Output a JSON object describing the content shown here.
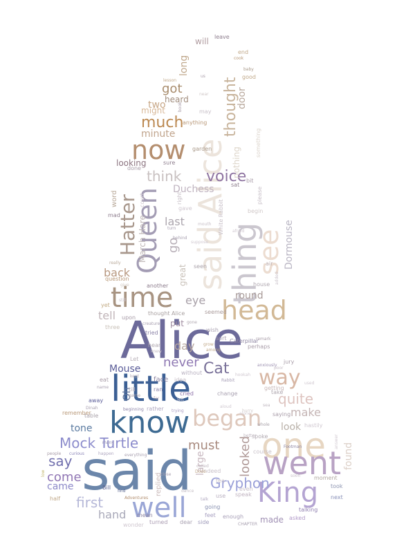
{
  "words": [
    {
      "text": "said",
      "color": "#6b86aa"
    },
    {
      "text": "Alice",
      "color": "#6c6a9a"
    },
    {
      "text": "little",
      "color": "#3b5f94"
    },
    {
      "text": "know",
      "color": "#3d6a92"
    },
    {
      "text": "one",
      "color": "#e7d6c2"
    },
    {
      "text": "went",
      "color": "#b8a2c4"
    },
    {
      "text": "King",
      "color": "#b4a4d2"
    },
    {
      "text": "well",
      "color": "#9aa6d6"
    },
    {
      "text": "head",
      "color": "#d2b996"
    },
    {
      "text": "time",
      "color": "#a89482"
    },
    {
      "text": "said Alice",
      "color": "#ece4dc"
    },
    {
      "text": "thing",
      "color": "#cbc7cf"
    },
    {
      "text": "Queen",
      "color": "#a39cb4"
    },
    {
      "text": "see",
      "color": "#ecdcd0"
    },
    {
      "text": "now",
      "color": "#b48e6e"
    },
    {
      "text": "began",
      "color": "#dec8bc"
    },
    {
      "text": "way",
      "color": "#d8b7a4"
    },
    {
      "text": "Hatter",
      "color": "#a8978c"
    },
    {
      "text": "Mock Turtle",
      "color": "#8c8ccc"
    },
    {
      "text": "voice",
      "color": "#8e73a0"
    },
    {
      "text": "think",
      "color": "#c8c0c0"
    },
    {
      "text": "much",
      "color": "#bb8850"
    },
    {
      "text": "Gryphon",
      "color": "#9aa0d8"
    },
    {
      "text": "quite",
      "color": "#dec4c0"
    },
    {
      "text": "thought",
      "color": "#c8b49c"
    },
    {
      "text": "say",
      "color": "#7270ae"
    },
    {
      "text": "come",
      "color": "#9076b4"
    },
    {
      "text": "first",
      "color": "#b6b8d8"
    },
    {
      "text": "must",
      "color": "#a88a7e"
    },
    {
      "text": "looked",
      "color": "#b09a98"
    },
    {
      "text": "Cat",
      "color": "#787098"
    },
    {
      "text": "never",
      "color": "#8e78b2"
    },
    {
      "text": "got",
      "color": "#a88c6c"
    },
    {
      "text": "Dormouse",
      "color": "#bab6c4"
    },
    {
      "text": "Duchess",
      "color": "#c0b4c0"
    },
    {
      "text": "make",
      "color": "#c4b4b4"
    },
    {
      "text": "go",
      "color": "#b8b0b8"
    },
    {
      "text": "Mouse",
      "color": "#5a5c98"
    },
    {
      "text": "eye",
      "color": "#a8a0a8"
    },
    {
      "text": "last",
      "color": "#aca6ae"
    },
    {
      "text": "round",
      "color": "#a89a98"
    },
    {
      "text": "back",
      "color": "#b89880"
    },
    {
      "text": "tell",
      "color": "#c0b4b8"
    },
    {
      "text": "hand",
      "color": "#a8a8b8"
    },
    {
      "text": "day",
      "color": "#b8a8a0"
    },
    {
      "text": "tone",
      "color": "#5a7aa0"
    },
    {
      "text": "came",
      "color": "#8c88c8"
    },
    {
      "text": "made",
      "color": "#a090b4"
    },
    {
      "text": "minute",
      "color": "#c0a48c"
    },
    {
      "text": "two",
      "color": "#c8a888"
    },
    {
      "text": "look",
      "color": "#b8b0a8"
    },
    {
      "text": "found",
      "color": "#dcd0c8"
    },
    {
      "text": "long",
      "color": "#c0a88c"
    },
    {
      "text": "Oh",
      "color": "#5c7098"
    },
    {
      "text": "large",
      "color": "#c8b8c0"
    },
    {
      "text": "March Hare",
      "color": "#c0b8b8"
    },
    {
      "text": "great",
      "color": "#c8c0b8"
    },
    {
      "text": "door",
      "color": "#b8a89c"
    },
    {
      "text": "heard",
      "color": "#a08c7c"
    },
    {
      "text": "might",
      "color": "#d8b898"
    },
    {
      "text": "nothing",
      "color": "#dcd4c8"
    },
    {
      "text": "looking",
      "color": "#8c7480"
    },
    {
      "text": "will",
      "color": "#b09ca0"
    },
    {
      "text": "word",
      "color": "#b8a898"
    },
    {
      "text": "replied",
      "color": "#c8b8b8"
    },
    {
      "text": "thought Alice",
      "color": "#a8a0a0"
    },
    {
      "text": "put",
      "color": "#a08ca0"
    },
    {
      "text": "Caterpillar",
      "color": "#8c84a0"
    },
    {
      "text": "seemed",
      "color": "#a89898"
    },
    {
      "text": "getting",
      "color": "#c8b8b8"
    },
    {
      "text": "going",
      "color": "#8890b0"
    },
    {
      "text": "enough",
      "color": "#a8a0b8"
    },
    {
      "text": "feet",
      "color": "#a8a0c0"
    },
    {
      "text": "side",
      "color": "#9c98b8"
    },
    {
      "text": "asked",
      "color": "#b098c8"
    },
    {
      "text": "talking",
      "color": "#9080b0"
    },
    {
      "text": "next",
      "color": "#8890b8"
    },
    {
      "text": "took",
      "color": "#8c94b0"
    },
    {
      "text": "moment",
      "color": "#b0a8a0"
    },
    {
      "text": "soon",
      "color": "#c8c0c8"
    },
    {
      "text": "speak",
      "color": "#c0b4c0"
    },
    {
      "text": "use",
      "color": "#b8b0c0"
    },
    {
      "text": "talk",
      "color": "#b0a8c0"
    },
    {
      "text": "dear",
      "color": "#a8a0b0"
    },
    {
      "text": "turned",
      "color": "#a89ab0"
    },
    {
      "text": "mean",
      "color": "#8c84a0"
    },
    {
      "text": "half",
      "color": "#c0a888"
    },
    {
      "text": "Adventures",
      "color": "#b08c6c"
    },
    {
      "text": "wonder",
      "color": "#d0c8d0"
    },
    {
      "text": "find",
      "color": "#5c6890"
    },
    {
      "text": "Bill",
      "color": "#5c6490"
    },
    {
      "text": "low",
      "color": "#c0b468"
    },
    {
      "text": "people",
      "color": "#a89ca8"
    },
    {
      "text": "curious",
      "color": "#8c86b8"
    },
    {
      "text": "happen",
      "color": "#b0a8c0"
    },
    {
      "text": "everything",
      "color": "#a8a0b0"
    },
    {
      "text": "many",
      "color": "#8c88b0"
    },
    {
      "text": "remember",
      "color": "#b89878"
    },
    {
      "text": "Dinah",
      "color": "#a8a0b0"
    },
    {
      "text": "beginning",
      "color": "#8c84a8"
    },
    {
      "text": "rather",
      "color": "#b0a8c0"
    },
    {
      "text": "trying",
      "color": "#a89cc0"
    },
    {
      "text": "away",
      "color": "#5a5c98"
    },
    {
      "text": "game",
      "color": "#a8a0a8"
    },
    {
      "text": "till",
      "color": "#b8b0b8"
    },
    {
      "text": "far",
      "color": "#c0b0b8"
    },
    {
      "text": "ran",
      "color": "#8c84a8"
    },
    {
      "text": "face",
      "color": "#8c84a0"
    },
    {
      "text": "idea",
      "color": "#c8c0c8"
    },
    {
      "text": "cried",
      "color": "#8c70a8"
    },
    {
      "text": "left",
      "color": "#d8d0d8"
    },
    {
      "text": "eat",
      "color": "#a89ca8"
    },
    {
      "text": "name",
      "color": "#a8a0b0"
    },
    {
      "text": "table",
      "color": "#a8a0a8"
    },
    {
      "text": "kept",
      "color": "#b0a8b0"
    },
    {
      "text": "Let",
      "color": "#b8b0b8"
    },
    {
      "text": "hear",
      "color": "#b0a8b0"
    },
    {
      "text": "knew",
      "color": "#c0b8c0"
    },
    {
      "text": "Rabbit",
      "color": "#a8a0b8"
    },
    {
      "text": "without",
      "color": "#b8b0c0"
    },
    {
      "text": "change",
      "color": "#a8a0b0"
    },
    {
      "text": "three",
      "color": "#c8c0b8"
    },
    {
      "text": "creature",
      "color": "#a8a0b0"
    },
    {
      "text": "tried",
      "color": "#8c84a8"
    },
    {
      "text": "upon",
      "color": "#a89ca8"
    },
    {
      "text": "yet",
      "color": "#c0a880"
    },
    {
      "text": "another",
      "color": "#8c7c8c"
    },
    {
      "text": "question",
      "color": "#b89878"
    },
    {
      "text": "give",
      "color": "#d0c8c0"
    },
    {
      "text": "really",
      "color": "#b8a898"
    },
    {
      "text": "still",
      "color": "#c8c0c8"
    },
    {
      "text": "house",
      "color": "#b0a8b0"
    },
    {
      "text": "air",
      "color": "#b8a8a8"
    },
    {
      "text": "seen",
      "color": "#a8a0a8"
    },
    {
      "text": "wish",
      "color": "#a8a0b0"
    },
    {
      "text": "sort",
      "color": "#a8a0b0"
    },
    {
      "text": "perhaps",
      "color": "#a89ca8"
    },
    {
      "text": "jury",
      "color": "#a89ca8"
    },
    {
      "text": "anxiously",
      "color": "#9c90b0"
    },
    {
      "text": "Footman",
      "color": "#8c84a0"
    },
    {
      "text": "saying",
      "color": "#a89ca8"
    },
    {
      "text": "course",
      "color": "#c8c0c8"
    },
    {
      "text": "spoke",
      "color": "#b0a8b0"
    },
    {
      "text": "whole",
      "color": "#a8a0a8"
    },
    {
      "text": "better",
      "color": "#c0b8c0"
    },
    {
      "text": "indeed",
      "color": "#c8c0c8"
    },
    {
      "text": "Dodo",
      "color": "#c0a888"
    },
    {
      "text": "even",
      "color": "#c8c0c8"
    },
    {
      "text": "tea",
      "color": "#c8c0c8"
    },
    {
      "text": "called",
      "color": "#c0b8c0"
    },
    {
      "text": "close",
      "color": "#a8a0b0"
    },
    {
      "text": "CHAPTER",
      "color": "#a8a0b0"
    },
    {
      "text": "gave",
      "color": "#d0c8d0"
    },
    {
      "text": "mouth",
      "color": "#c8c0c8"
    },
    {
      "text": "suppose",
      "color": "#d0c8d0"
    },
    {
      "text": "behind",
      "color": "#a8a0b0"
    },
    {
      "text": "turn",
      "color": "#a8a0b0"
    },
    {
      "text": "right",
      "color": "#c8c0c8"
    },
    {
      "text": "court",
      "color": "#d0c8d0"
    },
    {
      "text": "mad",
      "color": "#8c7c8c"
    },
    {
      "text": "done",
      "color": "#a89ca8"
    },
    {
      "text": "sure",
      "color": "#8c7c8c"
    },
    {
      "text": "garden",
      "color": "#a89888"
    },
    {
      "text": "anything",
      "color": "#b89878"
    },
    {
      "text": "may",
      "color": "#c8c0c8"
    },
    {
      "text": "lesson",
      "color": "#c0a888"
    },
    {
      "text": "near",
      "color": "#d0c8c8"
    },
    {
      "text": "us",
      "color": "#a89ca8"
    },
    {
      "text": "good",
      "color": "#c0a888"
    },
    {
      "text": "baby",
      "color": "#a89888"
    },
    {
      "text": "end",
      "color": "#c0a888"
    },
    {
      "text": "cook",
      "color": "#b89878"
    },
    {
      "text": "leave",
      "color": "#8c7c8c"
    },
    {
      "text": "something",
      "color": "#dcd4cc"
    },
    {
      "text": "bit",
      "color": "#a89ca8"
    },
    {
      "text": "sat",
      "color": "#8c7c8c"
    },
    {
      "text": "please",
      "color": "#c8c0c8"
    },
    {
      "text": "begin",
      "color": "#d0c8c8"
    },
    {
      "text": "White Rabbit",
      "color": "#c8c0c8"
    },
    {
      "text": "afraid",
      "color": "#d0c8d0"
    },
    {
      "text": "added",
      "color": "#c8c0c8"
    },
    {
      "text": "gone",
      "color": "#b0a8b0"
    },
    {
      "text": "grow",
      "color": "#c0a888"
    },
    {
      "text": "among",
      "color": "#c0a888"
    },
    {
      "text": "remark",
      "color": "#a89ca8"
    },
    {
      "text": "take",
      "color": "#b0a8b0"
    },
    {
      "text": "used",
      "color": "#d0c8d0"
    },
    {
      "text": "hastily",
      "color": "#d0c8d0"
    },
    {
      "text": "answer",
      "color": "#d0c8d0"
    },
    {
      "text": "book",
      "color": "#a89ca8"
    },
    {
      "text": "alone",
      "color": "#d0c8d0"
    },
    {
      "text": "aloud",
      "color": "#d0c8d0"
    },
    {
      "text": "sea",
      "color": "#c0b8c0"
    },
    {
      "text": "poor",
      "color": "#c8c0c8"
    },
    {
      "text": "hurry",
      "color": "#d0c8c8"
    },
    {
      "text": "hookah",
      "color": "#d0c8d0"
    },
    {
      "text": "dance",
      "color": "#c8c0c8"
    }
  ]
}
